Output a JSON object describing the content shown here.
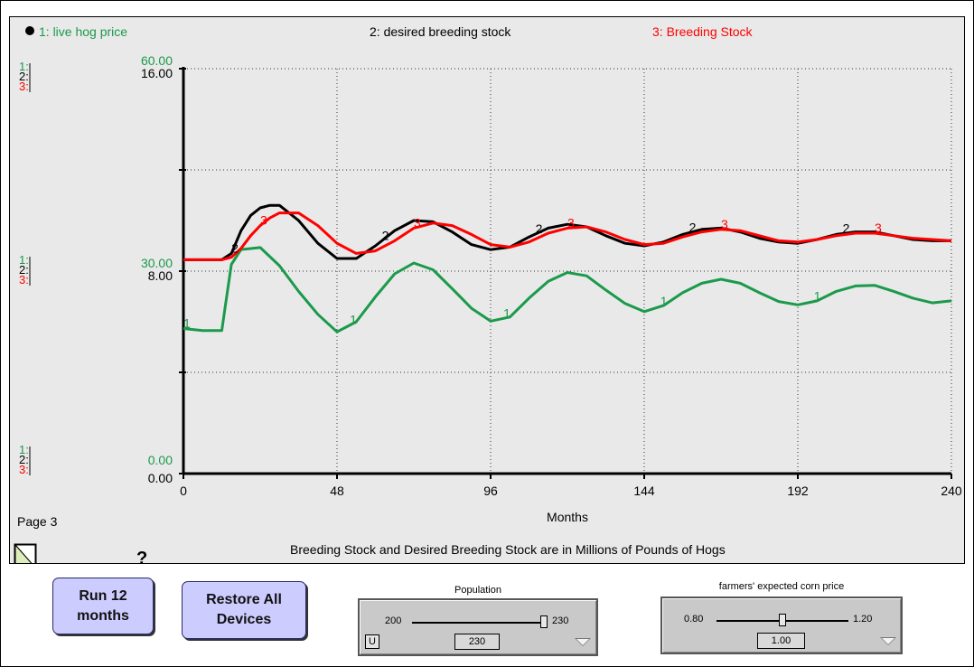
{
  "legend": {
    "item1": "1: live hog price",
    "item2": "2: desired breeding stock",
    "item3": "3: Breeding Stock"
  },
  "colors": {
    "series1": "#1a9a4a",
    "series2": "#000000",
    "series3": "#ff0000",
    "panel": "#e9e9e9",
    "button": "#ccccff"
  },
  "axis_labels": {
    "top": {
      "s1": "60.00",
      "s23": "16.00"
    },
    "mid": {
      "s1": "30.00",
      "s23": "8.00"
    },
    "bot": {
      "s1": "0.00",
      "s23": "0.00"
    },
    "scale_tags": [
      "1:",
      "2:",
      "3:"
    ]
  },
  "page_label": "Page 3",
  "help_icon": "?",
  "footnote": "Breeding Stock and Desired Breeding Stock are in  Millions of Pounds of Hogs",
  "chart_data": {
    "type": "line",
    "xlabel": "Months",
    "xticks": [
      "0",
      "48",
      "96",
      "144",
      "192",
      "240"
    ],
    "xlim": [
      0,
      240
    ],
    "grid": true,
    "series": [
      {
        "name": "1: live hog price",
        "axis": "left-1",
        "ylim": [
          0,
          60
        ],
        "x": [
          0,
          6,
          12,
          13,
          15,
          18,
          24,
          30,
          36,
          42,
          48,
          54,
          60,
          66,
          72,
          78,
          84,
          90,
          96,
          102,
          108,
          114,
          120,
          126,
          132,
          138,
          144,
          150,
          156,
          162,
          168,
          174,
          180,
          186,
          192,
          198,
          204,
          210,
          216,
          222,
          228,
          234,
          240
        ],
        "y": [
          21.5,
          21.2,
          21.2,
          24.5,
          31.0,
          33.2,
          33.5,
          30.8,
          27.0,
          23.6,
          21.0,
          22.5,
          26.2,
          29.6,
          31.2,
          30.2,
          27.4,
          24.5,
          22.6,
          23.2,
          26.0,
          28.5,
          29.8,
          29.3,
          27.2,
          25.2,
          24.0,
          24.9,
          26.8,
          28.2,
          28.8,
          28.2,
          26.8,
          25.5,
          25.0,
          25.6,
          27.0,
          27.8,
          27.9,
          27.0,
          26.0,
          25.3,
          25.6
        ]
      },
      {
        "name": "2: desired breeding stock",
        "axis": "left-2",
        "ylim": [
          0,
          16
        ],
        "x": [
          0,
          6,
          12,
          15,
          18,
          21,
          24,
          27,
          30,
          36,
          42,
          48,
          54,
          60,
          66,
          72,
          78,
          84,
          90,
          96,
          102,
          108,
          114,
          120,
          126,
          132,
          138,
          144,
          150,
          156,
          162,
          168,
          174,
          180,
          186,
          192,
          198,
          204,
          210,
          216,
          222,
          228,
          234,
          240
        ],
        "y": [
          8.45,
          8.45,
          8.45,
          8.7,
          9.6,
          10.2,
          10.5,
          10.6,
          10.6,
          10.0,
          9.1,
          8.5,
          8.5,
          9.0,
          9.6,
          10.0,
          9.95,
          9.55,
          9.05,
          8.85,
          8.95,
          9.35,
          9.7,
          9.85,
          9.75,
          9.4,
          9.1,
          9.0,
          9.15,
          9.45,
          9.65,
          9.7,
          9.55,
          9.3,
          9.15,
          9.1,
          9.25,
          9.45,
          9.55,
          9.55,
          9.4,
          9.25,
          9.2,
          9.2
        ]
      },
      {
        "name": "3: Breeding Stock",
        "axis": "left-3",
        "ylim": [
          0,
          16
        ],
        "x": [
          0,
          6,
          12,
          15,
          18,
          21,
          24,
          27,
          30,
          36,
          42,
          48,
          54,
          60,
          66,
          72,
          78,
          84,
          90,
          96,
          102,
          108,
          114,
          120,
          126,
          132,
          138,
          144,
          150,
          156,
          162,
          168,
          174,
          180,
          186,
          192,
          198,
          204,
          210,
          216,
          222,
          228,
          234,
          240
        ],
        "y": [
          8.45,
          8.45,
          8.45,
          8.55,
          8.9,
          9.4,
          9.8,
          10.1,
          10.3,
          10.3,
          9.8,
          9.1,
          8.7,
          8.8,
          9.2,
          9.7,
          9.9,
          9.8,
          9.45,
          9.05,
          8.95,
          9.15,
          9.5,
          9.7,
          9.75,
          9.55,
          9.25,
          9.05,
          9.1,
          9.35,
          9.55,
          9.65,
          9.6,
          9.4,
          9.2,
          9.15,
          9.25,
          9.4,
          9.5,
          9.5,
          9.4,
          9.3,
          9.25,
          9.2
        ]
      }
    ],
    "point_markers": {
      "series1": [
        0,
        52,
        100,
        149,
        197
      ],
      "series2": [
        15,
        62,
        110,
        158,
        206
      ],
      "series3": [
        24,
        72,
        120,
        168,
        216
      ]
    }
  },
  "buttons": {
    "run": "Run 12 months",
    "restore": "Restore All Devices"
  },
  "sliders": {
    "population": {
      "title": "Population",
      "min": "200",
      "max": "230",
      "value": "230",
      "fraction": 1.0,
      "u_label": "U"
    },
    "corn": {
      "title": "farmers' expected  corn price",
      "min": "0.80",
      "max": "1.20",
      "value": "1.00",
      "fraction": 0.5
    }
  }
}
